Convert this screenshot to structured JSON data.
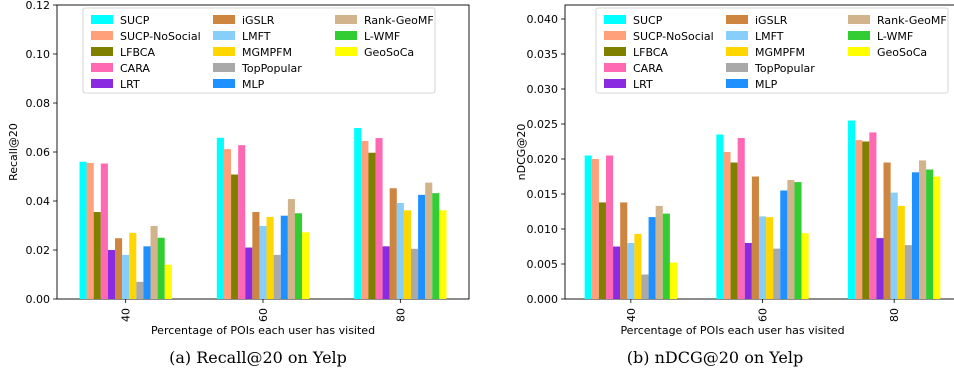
{
  "series_names": [
    "SUCP",
    "SUCP-NoSocial",
    "LFBCA",
    "CARA",
    "LRT",
    "iGSLR",
    "LMFT",
    "MGMPFM",
    "TopPopular",
    "MLP",
    "Rank-GeoMF",
    "L-WMF",
    "GeoSoCa"
  ],
  "series_colors": [
    "#00ffff",
    "#ffa07a",
    "#808000",
    "#ff69b4",
    "#8a2be2",
    "#cd853f",
    "#87cefa",
    "#ffd700",
    "#a9a9a9",
    "#1e90ff",
    "#d2b48c",
    "#32cd32",
    "#ffff00"
  ],
  "chart_data": [
    {
      "type": "bar",
      "caption": "(a) Recall@20 on Yelp",
      "xlabel": "Percentage of POIs each user has visited",
      "ylabel": "Recall@20",
      "categories": [
        "40",
        "60",
        "80"
      ],
      "ylim": [
        0,
        0.12
      ],
      "yticks": [
        "0.00",
        "0.02",
        "0.04",
        "0.06",
        "0.08",
        "0.10",
        "0.12"
      ],
      "series": [
        {
          "name": "SUCP",
          "values": [
            0.056,
            0.0658,
            0.0698
          ]
        },
        {
          "name": "SUCP-NoSocial",
          "values": [
            0.0555,
            0.0612,
            0.0645
          ]
        },
        {
          "name": "LFBCA",
          "values": [
            0.0355,
            0.0508,
            0.0597
          ]
        },
        {
          "name": "CARA",
          "values": [
            0.0553,
            0.0628,
            0.0657
          ]
        },
        {
          "name": "LRT",
          "values": [
            0.02,
            0.021,
            0.0215
          ]
        },
        {
          "name": "iGSLR",
          "values": [
            0.0248,
            0.0355,
            0.0452
          ]
        },
        {
          "name": "LMFT",
          "values": [
            0.018,
            0.0298,
            0.0392
          ]
        },
        {
          "name": "MGMPFM",
          "values": [
            0.027,
            0.0335,
            0.0362
          ]
        },
        {
          "name": "TopPopular",
          "values": [
            0.007,
            0.018,
            0.0205
          ]
        },
        {
          "name": "MLP",
          "values": [
            0.0215,
            0.034,
            0.0425
          ]
        },
        {
          "name": "Rank-GeoMF",
          "values": [
            0.0298,
            0.0408,
            0.0475
          ]
        },
        {
          "name": "L-WMF",
          "values": [
            0.025,
            0.035,
            0.0432
          ]
        },
        {
          "name": "GeoSoCa",
          "values": [
            0.014,
            0.0272,
            0.0362
          ]
        }
      ]
    },
    {
      "type": "bar",
      "caption": "(b) nDCG@20 on Yelp",
      "xlabel": "Percentage of POIs each user has visited",
      "ylabel": "nDCG@20",
      "categories": [
        "40",
        "60",
        "80"
      ],
      "ylim": [
        0,
        0.042
      ],
      "yticks": [
        "0.000",
        "0.005",
        "0.010",
        "0.015",
        "0.020",
        "0.025",
        "0.030",
        "0.035",
        "0.040"
      ],
      "series": [
        {
          "name": "SUCP",
          "values": [
            0.0205,
            0.0235,
            0.0255
          ]
        },
        {
          "name": "SUCP-NoSocial",
          "values": [
            0.02,
            0.021,
            0.0227
          ]
        },
        {
          "name": "LFBCA",
          "values": [
            0.0138,
            0.0195,
            0.0225
          ]
        },
        {
          "name": "CARA",
          "values": [
            0.0205,
            0.023,
            0.0238
          ]
        },
        {
          "name": "LRT",
          "values": [
            0.0075,
            0.008,
            0.0087
          ]
        },
        {
          "name": "iGSLR",
          "values": [
            0.0138,
            0.0175,
            0.0195
          ]
        },
        {
          "name": "LMFT",
          "values": [
            0.008,
            0.0118,
            0.0152
          ]
        },
        {
          "name": "MGMPFM",
          "values": [
            0.0093,
            0.0117,
            0.0133
          ]
        },
        {
          "name": "TopPopular",
          "values": [
            0.0035,
            0.0072,
            0.0077
          ]
        },
        {
          "name": "MLP",
          "values": [
            0.0117,
            0.0155,
            0.0181
          ]
        },
        {
          "name": "Rank-GeoMF",
          "values": [
            0.0133,
            0.017,
            0.0198
          ]
        },
        {
          "name": "L-WMF",
          "values": [
            0.0122,
            0.0167,
            0.0185
          ]
        },
        {
          "name": "GeoSoCa",
          "values": [
            0.0052,
            0.0094,
            0.0175
          ]
        }
      ]
    }
  ]
}
